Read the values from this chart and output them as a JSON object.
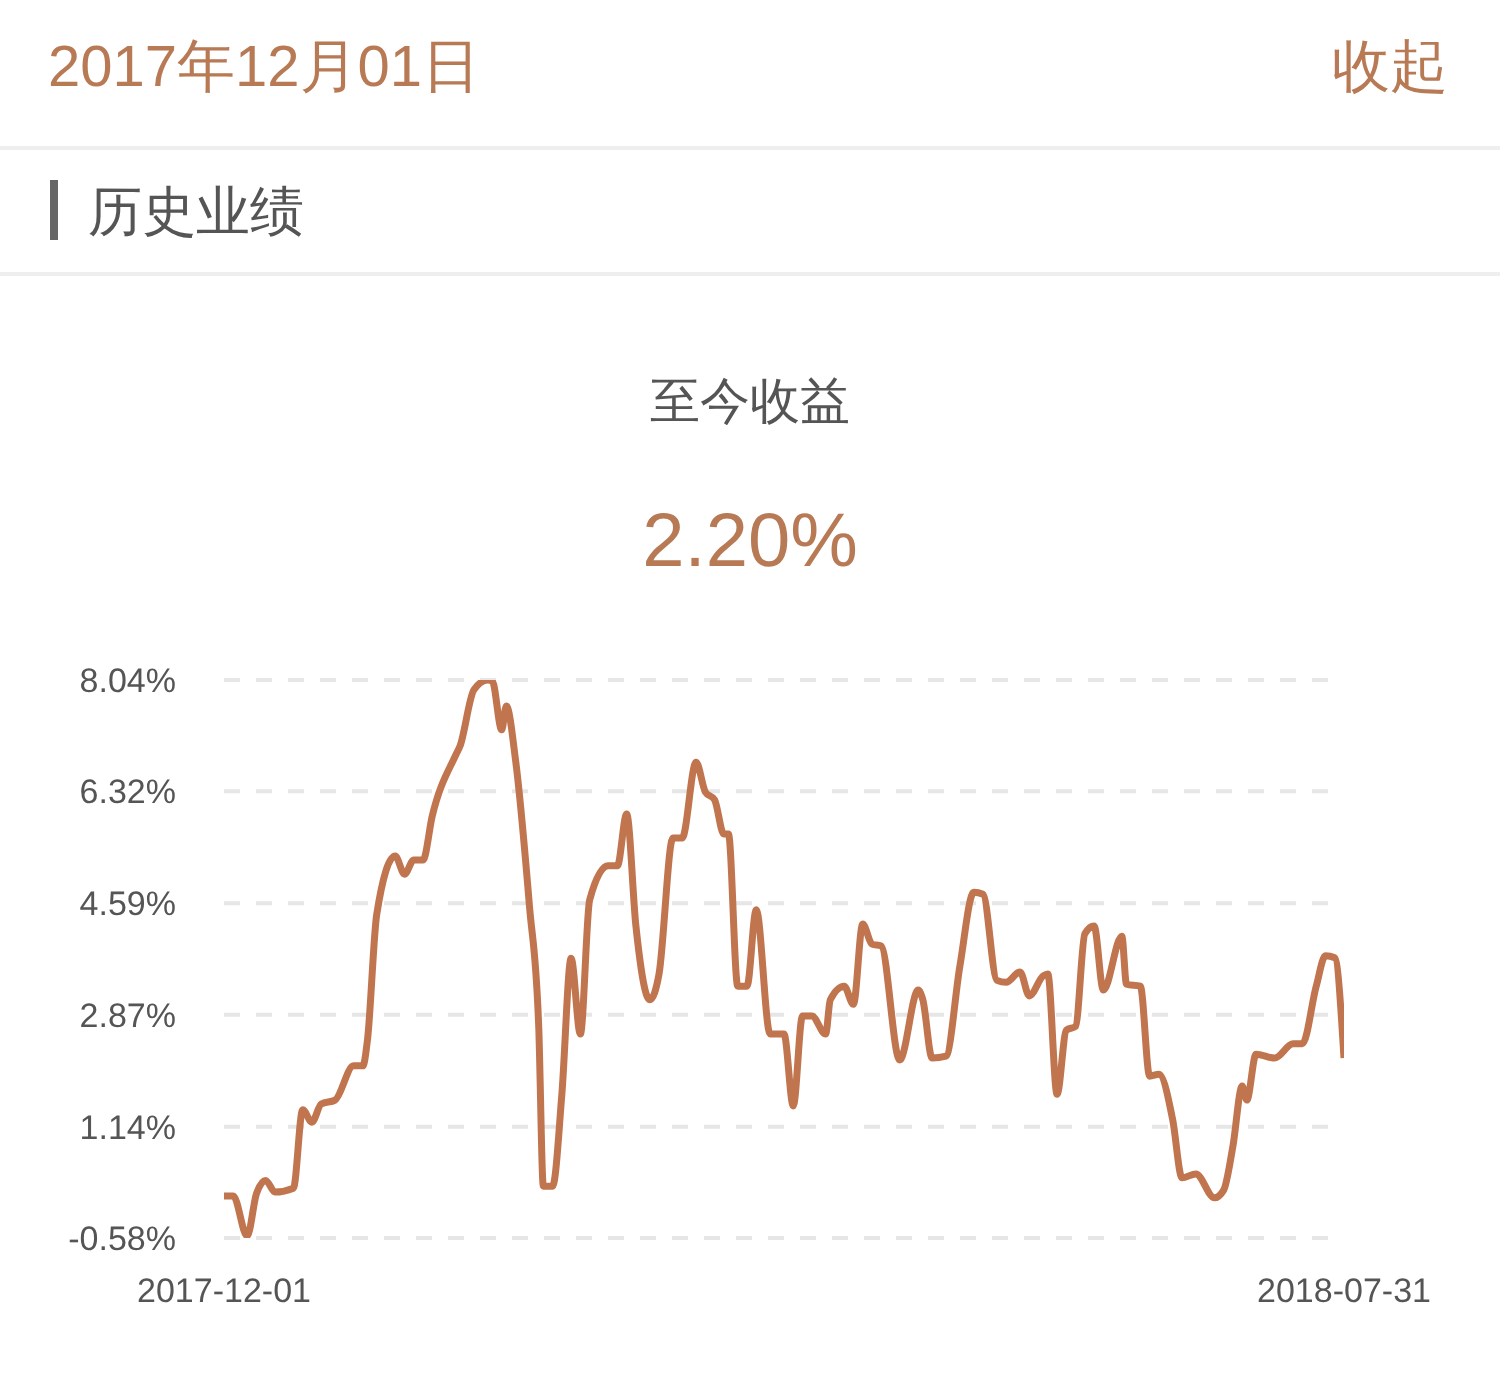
{
  "chart_data": {
    "type": "line",
    "title": "至今收益",
    "subtitle": "2.20%",
    "annotations": [
      "2017年12月01日",
      "收起",
      "历史业绩"
    ],
    "x": [
      "2017-12-01",
      "2017-12-03",
      "2017-12-06",
      "2017-12-08",
      "2017-12-10",
      "2017-12-12",
      "2017-12-16",
      "2017-12-18",
      "2017-12-20",
      "2017-12-22",
      "2017-12-25",
      "2017-12-29",
      "2017-12-31",
      "2018-01-01",
      "2018-01-03",
      "2018-01-07",
      "2018-01-09",
      "2018-01-11",
      "2018-01-13",
      "2018-01-15",
      "2018-01-20",
      "2018-01-21",
      "2018-01-24",
      "2018-01-27",
      "2018-01-28",
      "2018-01-30",
      "2018-01-31",
      "2018-02-02",
      "2018-02-05",
      "2018-02-07",
      "2018-02-08",
      "2018-02-10",
      "2018-02-12",
      "2018-02-14",
      "2018-02-16",
      "2018-02-18",
      "2018-02-22",
      "2018-02-24",
      "2018-02-26",
      "2018-02-28",
      "2018-03-03",
      "2018-03-05",
      "2018-03-08",
      "2018-03-10",
      "2018-03-13",
      "2018-03-15",
      "2018-03-17",
      "2018-03-19",
      "2018-03-20",
      "2018-03-22",
      "2018-03-24",
      "2018-03-26",
      "2018-03-29",
      "2018-04-01",
      "2018-04-03",
      "2018-04-05",
      "2018-04-07",
      "2018-04-10",
      "2018-04-11",
      "2018-04-14",
      "2018-04-16",
      "2018-04-18",
      "2018-04-20",
      "2018-04-22",
      "2018-04-26",
      "2018-04-30",
      "2018-05-01",
      "2018-05-03",
      "2018-05-06",
      "2018-05-09",
      "2018-05-12",
      "2018-05-14",
      "2018-05-17",
      "2018-05-19",
      "2018-05-22",
      "2018-05-24",
      "2018-05-27",
      "2018-05-28",
      "2018-05-30",
      "2018-06-01",
      "2018-06-03",
      "2018-06-05",
      "2018-06-07",
      "2018-06-09",
      "2018-06-13",
      "2018-06-14",
      "2018-06-17",
      "2018-06-19",
      "2018-06-21",
      "2018-06-24",
      "2018-06-26",
      "2018-06-29",
      "2018-07-03",
      "2018-07-05",
      "2018-07-07",
      "2018-07-09",
      "2018-07-10",
      "2018-07-12",
      "2018-07-16",
      "2018-07-20",
      "2018-07-22",
      "2018-07-25",
      "2018-07-27",
      "2018-07-29",
      "2018-07-31"
    ],
    "series": [
      {
        "color": "#c0754f",
        "values": [
          0.07,
          0.07,
          -0.55,
          0.1,
          0.31,
          0.13,
          0.19,
          1.4,
          1.21,
          1.49,
          1.55,
          2.08,
          2.08,
          2.48,
          4.42,
          5.32,
          5.04,
          5.26,
          5.26,
          5.94,
          6.87,
          7.02,
          7.89,
          8.04,
          8.02,
          7.27,
          7.64,
          6.8,
          4.55,
          2.69,
          0.22,
          0.22,
          1.64,
          3.74,
          2.57,
          4.64,
          5.17,
          5.17,
          5.97,
          4.24,
          3.1,
          3.5,
          5.6,
          5.6,
          6.77,
          6.31,
          6.19,
          5.66,
          5.66,
          3.31,
          3.31,
          4.49,
          2.57,
          2.57,
          1.46,
          2.85,
          2.85,
          2.57,
          3.1,
          3.31,
          3.03,
          4.27,
          3.96,
          3.93,
          2.17,
          3.25,
          3.1,
          2.2,
          2.23,
          3.62,
          4.76,
          4.73,
          3.4,
          3.37,
          3.53,
          3.16,
          3.47,
          3.5,
          1.64,
          2.63,
          2.69,
          4.12,
          4.24,
          3.25,
          4.08,
          3.34,
          3.31,
          1.92,
          1.95,
          1.24,
          0.35,
          0.41,
          0.04,
          0.16,
          0.84,
          1.77,
          1.55,
          2.26,
          2.2,
          2.42,
          2.42,
          3.31,
          3.78,
          3.75,
          2.2
        ]
      }
    ],
    "xlim": [
      "2017-12-01",
      "2018-07-31"
    ],
    "xticks": [
      "2017-12-01",
      "2018-07-31"
    ],
    "ylim": [
      -0.58,
      8.04
    ],
    "yticks": [
      {
        "value": -0.58,
        "label": "-0.58%"
      },
      {
        "value": 1.14,
        "label": "1.14%"
      },
      {
        "value": 2.87,
        "label": "2.87%"
      },
      {
        "value": 4.59,
        "label": "4.59%"
      },
      {
        "value": 6.32,
        "label": "6.32%"
      },
      {
        "value": 8.04,
        "label": "8.04%"
      }
    ],
    "grid": "y",
    "legend": false,
    "marker": "none",
    "line_style": "solid"
  }
}
